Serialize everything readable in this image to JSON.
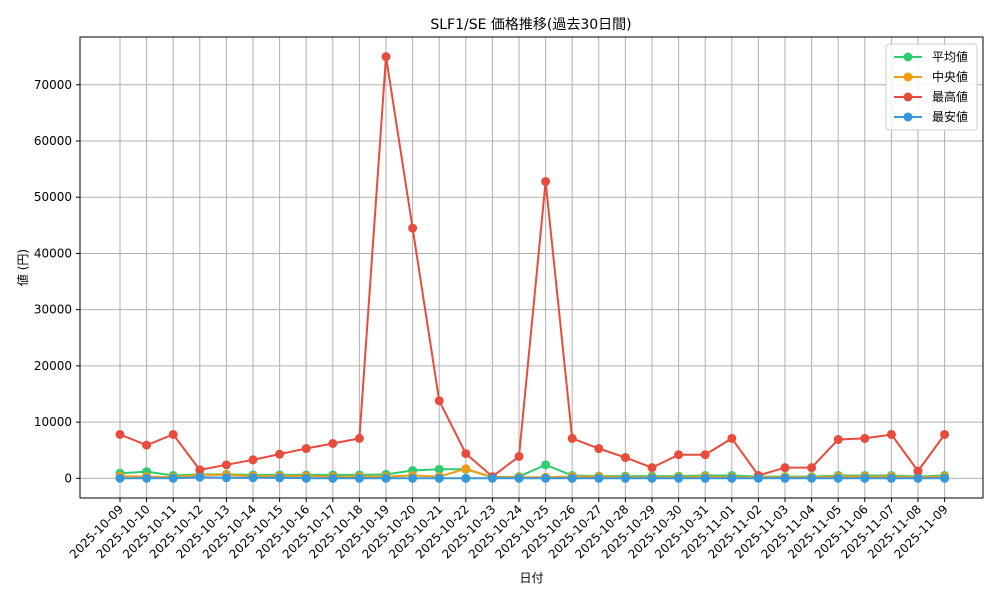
{
  "chart_data": {
    "type": "line",
    "title": "SLF1/SE 価格推移(過去30日間)",
    "xlabel": "日付",
    "ylabel": "値 (円)",
    "ylim": [
      -3500,
      78500
    ],
    "yticks": [
      0,
      10000,
      20000,
      30000,
      40000,
      50000,
      60000,
      70000
    ],
    "grid": true,
    "legend_position": "top-right",
    "x": [
      "2025-10-09",
      "2025-10-10",
      "2025-10-11",
      "2025-10-12",
      "2025-10-13",
      "2025-10-14",
      "2025-10-15",
      "2025-10-16",
      "2025-10-17",
      "2025-10-18",
      "2025-10-19",
      "2025-10-20",
      "2025-10-21",
      "2025-10-22",
      "2025-10-23",
      "2025-10-24",
      "2025-10-25",
      "2025-10-26",
      "2025-10-27",
      "2025-10-28",
      "2025-10-29",
      "2025-10-30",
      "2025-10-31",
      "2025-11-01",
      "2025-11-02",
      "2025-11-03",
      "2025-11-04",
      "2025-11-05",
      "2025-11-06",
      "2025-11-07",
      "2025-11-08",
      "2025-11-09"
    ],
    "series": [
      {
        "name": "平均値",
        "color": "#2ecc71",
        "values": [
          900,
          1200,
          500,
          700,
          700,
          600,
          600,
          600,
          600,
          600,
          700,
          1400,
          1600,
          1600,
          200,
          300,
          2400,
          500,
          400,
          400,
          400,
          400,
          500,
          500,
          300,
          300,
          300,
          500,
          500,
          500,
          300,
          500
        ]
      },
      {
        "name": "中央値",
        "color": "#f39c12",
        "values": [
          400,
          300,
          200,
          600,
          600,
          400,
          400,
          400,
          300,
          300,
          300,
          500,
          300,
          1700,
          200,
          200,
          200,
          300,
          300,
          200,
          200,
          200,
          300,
          200,
          200,
          200,
          200,
          300,
          300,
          300,
          200,
          300
        ]
      },
      {
        "name": "最高値",
        "color": "#e74c3c",
        "values": [
          7800,
          5900,
          7800,
          1500,
          2400,
          3300,
          4300,
          5300,
          6200,
          7100,
          75000,
          44500,
          13800,
          4400,
          300,
          3900,
          52800,
          7100,
          5300,
          3700,
          1900,
          4200,
          4200,
          7100,
          500,
          1900,
          1900,
          6900,
          7100,
          7800,
          1300,
          7800
        ]
      },
      {
        "name": "最安値",
        "color": "#3498db",
        "values": [
          0,
          0,
          0,
          200,
          100,
          100,
          100,
          0,
          0,
          0,
          0,
          0,
          0,
          0,
          0,
          0,
          0,
          0,
          0,
          0,
          0,
          0,
          0,
          0,
          0,
          0,
          0,
          0,
          0,
          0,
          0,
          0
        ]
      }
    ]
  }
}
